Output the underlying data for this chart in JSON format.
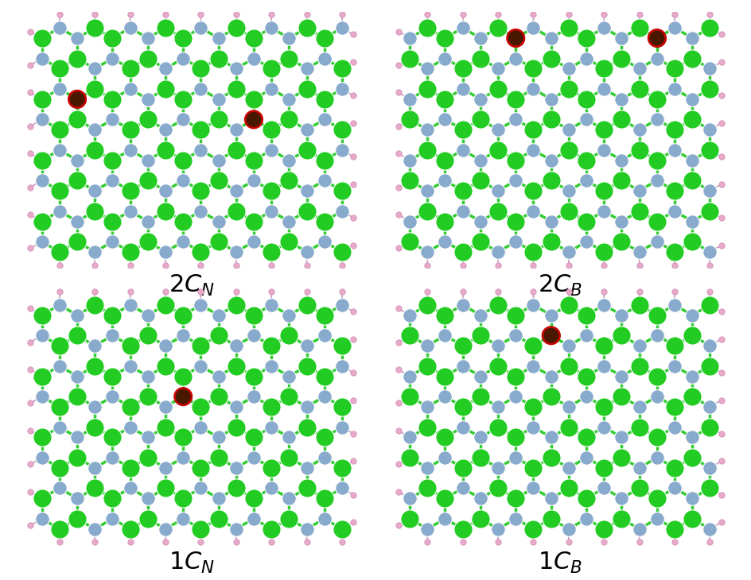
{
  "boron_color": "#22cc22",
  "nitrogen_color": "#88aacc",
  "hydrogen_color": "#e8aac8",
  "h_bond_color": "#c8a0c0",
  "carbon_color": "#4a1800",
  "bond_color_BN": "#22cc22",
  "bond_color_h": "#c0a8c8",
  "circle_color": "#cc0000",
  "bg_color": "#ffffff",
  "panels": [
    {
      "label": "2C",
      "subscript": "N",
      "row": 0,
      "col": 0,
      "swap_sublattice": false,
      "carbon_sites": [
        {
          "flat_idx": 23
        },
        {
          "flat_idx": 30
        }
      ]
    },
    {
      "label": "2C",
      "subscript": "B",
      "row": 0,
      "col": 1,
      "swap_sublattice": true,
      "carbon_sites": [
        {
          "flat_idx": 6
        },
        {
          "flat_idx": 8
        }
      ]
    },
    {
      "label": "1C",
      "subscript": "N",
      "row": 1,
      "col": 0,
      "swap_sublattice": false,
      "carbon_sites": [
        {
          "flat_idx": 29
        }
      ]
    },
    {
      "label": "1C",
      "subscript": "B",
      "row": 1,
      "col": 1,
      "swap_sublattice": true,
      "carbon_sites": [
        {
          "flat_idx": 11
        }
      ]
    }
  ]
}
